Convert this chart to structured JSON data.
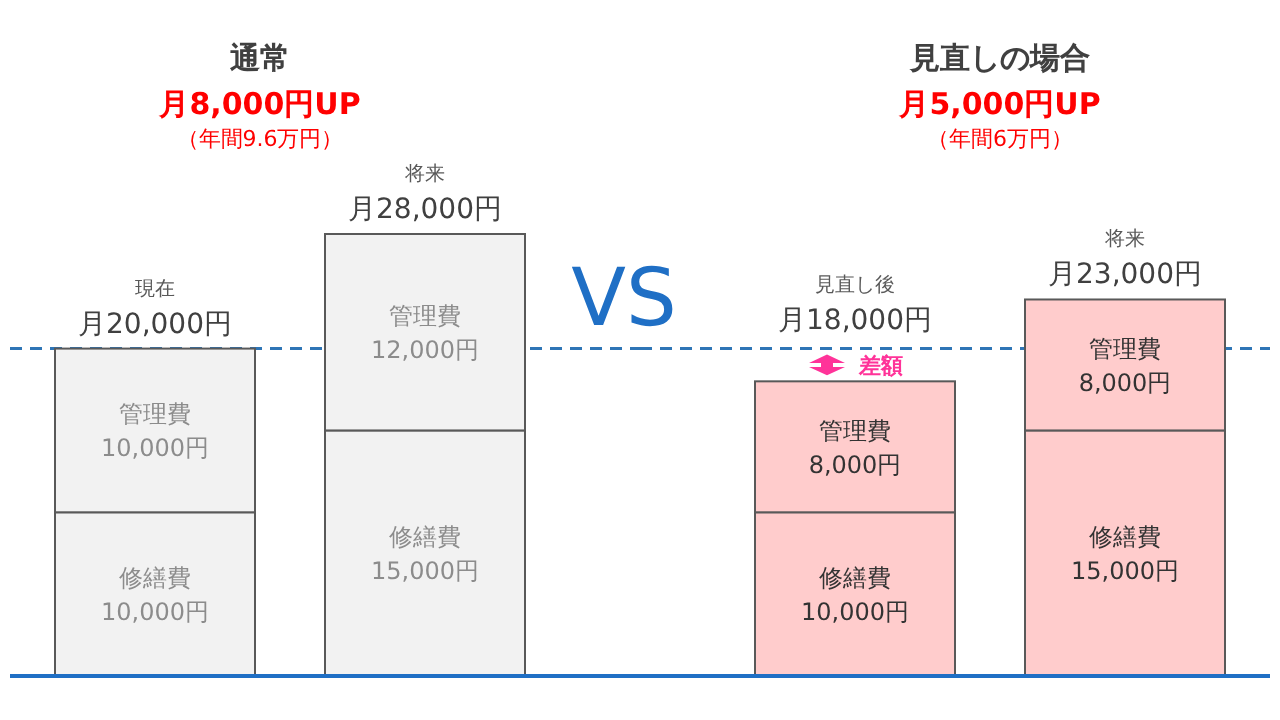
{
  "chart_data": [
    {
      "type": "bar",
      "stacked": true,
      "title": "通常",
      "subtitle": "月8,000円UP",
      "annotations": [
        "（年間9.6万円）",
        "VS"
      ],
      "categories": [
        "現在",
        "将来"
      ],
      "series": [
        {
          "name": "修繕費",
          "color": "#f2f2f2",
          "values": [
            10000,
            15000
          ],
          "value_labels": [
            "10,000円",
            "15,000円"
          ]
        },
        {
          "name": "管理費",
          "color": "#f2f2f2",
          "values": [
            10000,
            12000
          ],
          "value_labels": [
            "10,000円",
            "12,000円"
          ]
        }
      ],
      "totals": [
        "月20,000円",
        "月28,000円"
      ],
      "ref_lines": [
        {
          "axis": "y",
          "value": 20000,
          "color": "#2e75b6",
          "line_style": "dashed"
        }
      ]
    },
    {
      "type": "bar",
      "stacked": true,
      "title": "見直しの場合",
      "subtitle": "月5,000円UP",
      "annotations": [
        "（年間6万円）",
        "差額"
      ],
      "categories": [
        "見直し後",
        "将来"
      ],
      "series": [
        {
          "name": "修繕費",
          "color": "#ffcccc",
          "values": [
            10000,
            15000
          ],
          "value_labels": [
            "10,000円",
            "15,000円"
          ]
        },
        {
          "name": "管理費",
          "color": "#ffcccc",
          "values": [
            8000,
            8000
          ],
          "value_labels": [
            "8,000円",
            "8,000円"
          ]
        }
      ],
      "totals": [
        "月18,000円",
        "月23,000円"
      ],
      "ref_lines": [
        {
          "axis": "y",
          "value": 20000,
          "color": "#2e75b6",
          "line_style": "dashed"
        }
      ]
    }
  ]
}
